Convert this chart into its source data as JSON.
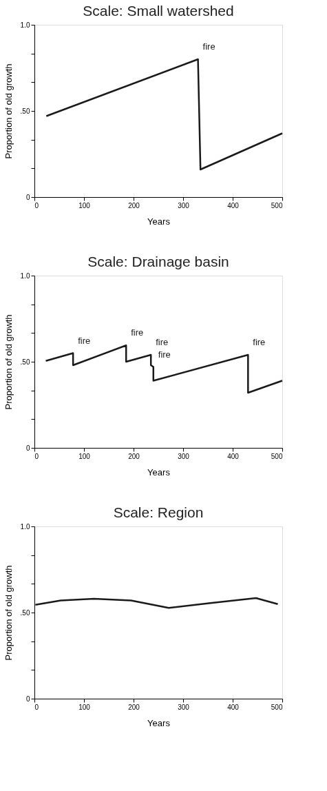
{
  "chart_data": [
    {
      "type": "line",
      "title": "Scale:  Small watershed",
      "xlabel": "Years",
      "ylabel": "Proportion of old growth",
      "x": [
        24,
        330,
        335,
        500
      ],
      "values": [
        0.47,
        0.8,
        0.16,
        0.37
      ],
      "color": "#1a1a1a",
      "xlim": [
        0,
        500
      ],
      "xticks": [
        0,
        100,
        200,
        300,
        400,
        500
      ],
      "ylim": [
        0,
        1
      ],
      "yticks": [
        {
          "value": 0,
          "label": "0"
        },
        {
          "value": 0.167,
          "label": null
        },
        {
          "value": 0.333,
          "label": null
        },
        {
          "value": 0.5,
          "label": ".50"
        },
        {
          "value": 0.667,
          "label": null
        },
        {
          "value": 0.833,
          "label": null
        },
        {
          "value": 1,
          "label": "1.0"
        }
      ],
      "annotations": [
        {
          "text": "fire",
          "x": 330,
          "y": 0.8
        }
      ],
      "grid": false,
      "legend": false,
      "marker": "none",
      "line_style": "solid"
    },
    {
      "type": "line",
      "title": "Scale:  Drainage basin",
      "xlabel": "Years",
      "ylabel": "Proportion of old growth",
      "x": [
        23,
        78,
        78,
        185,
        185,
        235,
        235,
        240,
        240,
        431,
        431,
        500
      ],
      "values": [
        0.505,
        0.55,
        0.48,
        0.595,
        0.5,
        0.54,
        0.48,
        0.47,
        0.39,
        0.54,
        0.32,
        0.39
      ],
      "color": "#1a1a1a",
      "xlim": [
        0,
        500
      ],
      "xticks": [
        0,
        100,
        200,
        300,
        400,
        500
      ],
      "ylim": [
        0,
        1
      ],
      "yticks": [
        {
          "value": 0,
          "label": "0"
        },
        {
          "value": 0.167,
          "label": null
        },
        {
          "value": 0.333,
          "label": null
        },
        {
          "value": 0.5,
          "label": ".50"
        },
        {
          "value": 0.667,
          "label": null
        },
        {
          "value": 0.833,
          "label": null
        },
        {
          "value": 1,
          "label": "1.0"
        }
      ],
      "annotations": [
        {
          "text": "fire",
          "x": 78,
          "y": 0.55
        },
        {
          "text": "fire",
          "x": 185,
          "y": 0.595
        },
        {
          "text": "fire",
          "x": 235,
          "y": 0.54
        },
        {
          "text": "fire",
          "x": 240,
          "y": 0.47
        },
        {
          "text": "fire",
          "x": 431,
          "y": 0.54
        }
      ],
      "grid": false,
      "legend": false,
      "marker": "none",
      "line_style": "solid"
    },
    {
      "type": "line",
      "title": "Scale:  Region",
      "xlabel": "Years",
      "ylabel": "Proportion of old growth",
      "x": [
        2,
        53,
        120,
        195,
        271,
        355,
        447,
        491
      ],
      "values": [
        0.545,
        0.57,
        0.58,
        0.57,
        0.527,
        0.555,
        0.584,
        0.549
      ],
      "color": "#1a1a1a",
      "xlim": [
        0,
        500
      ],
      "xticks": [
        0,
        100,
        200,
        300,
        400,
        500
      ],
      "ylim": [
        0,
        1
      ],
      "yticks": [
        {
          "value": 0,
          "label": "0"
        },
        {
          "value": 0.167,
          "label": null
        },
        {
          "value": 0.333,
          "label": null
        },
        {
          "value": 0.5,
          "label": ".50"
        },
        {
          "value": 0.667,
          "label": null
        },
        {
          "value": 0.833,
          "label": null
        },
        {
          "value": 1,
          "label": "1.0"
        }
      ],
      "grid": false,
      "legend": false,
      "marker": "none",
      "line_style": "solid"
    }
  ]
}
